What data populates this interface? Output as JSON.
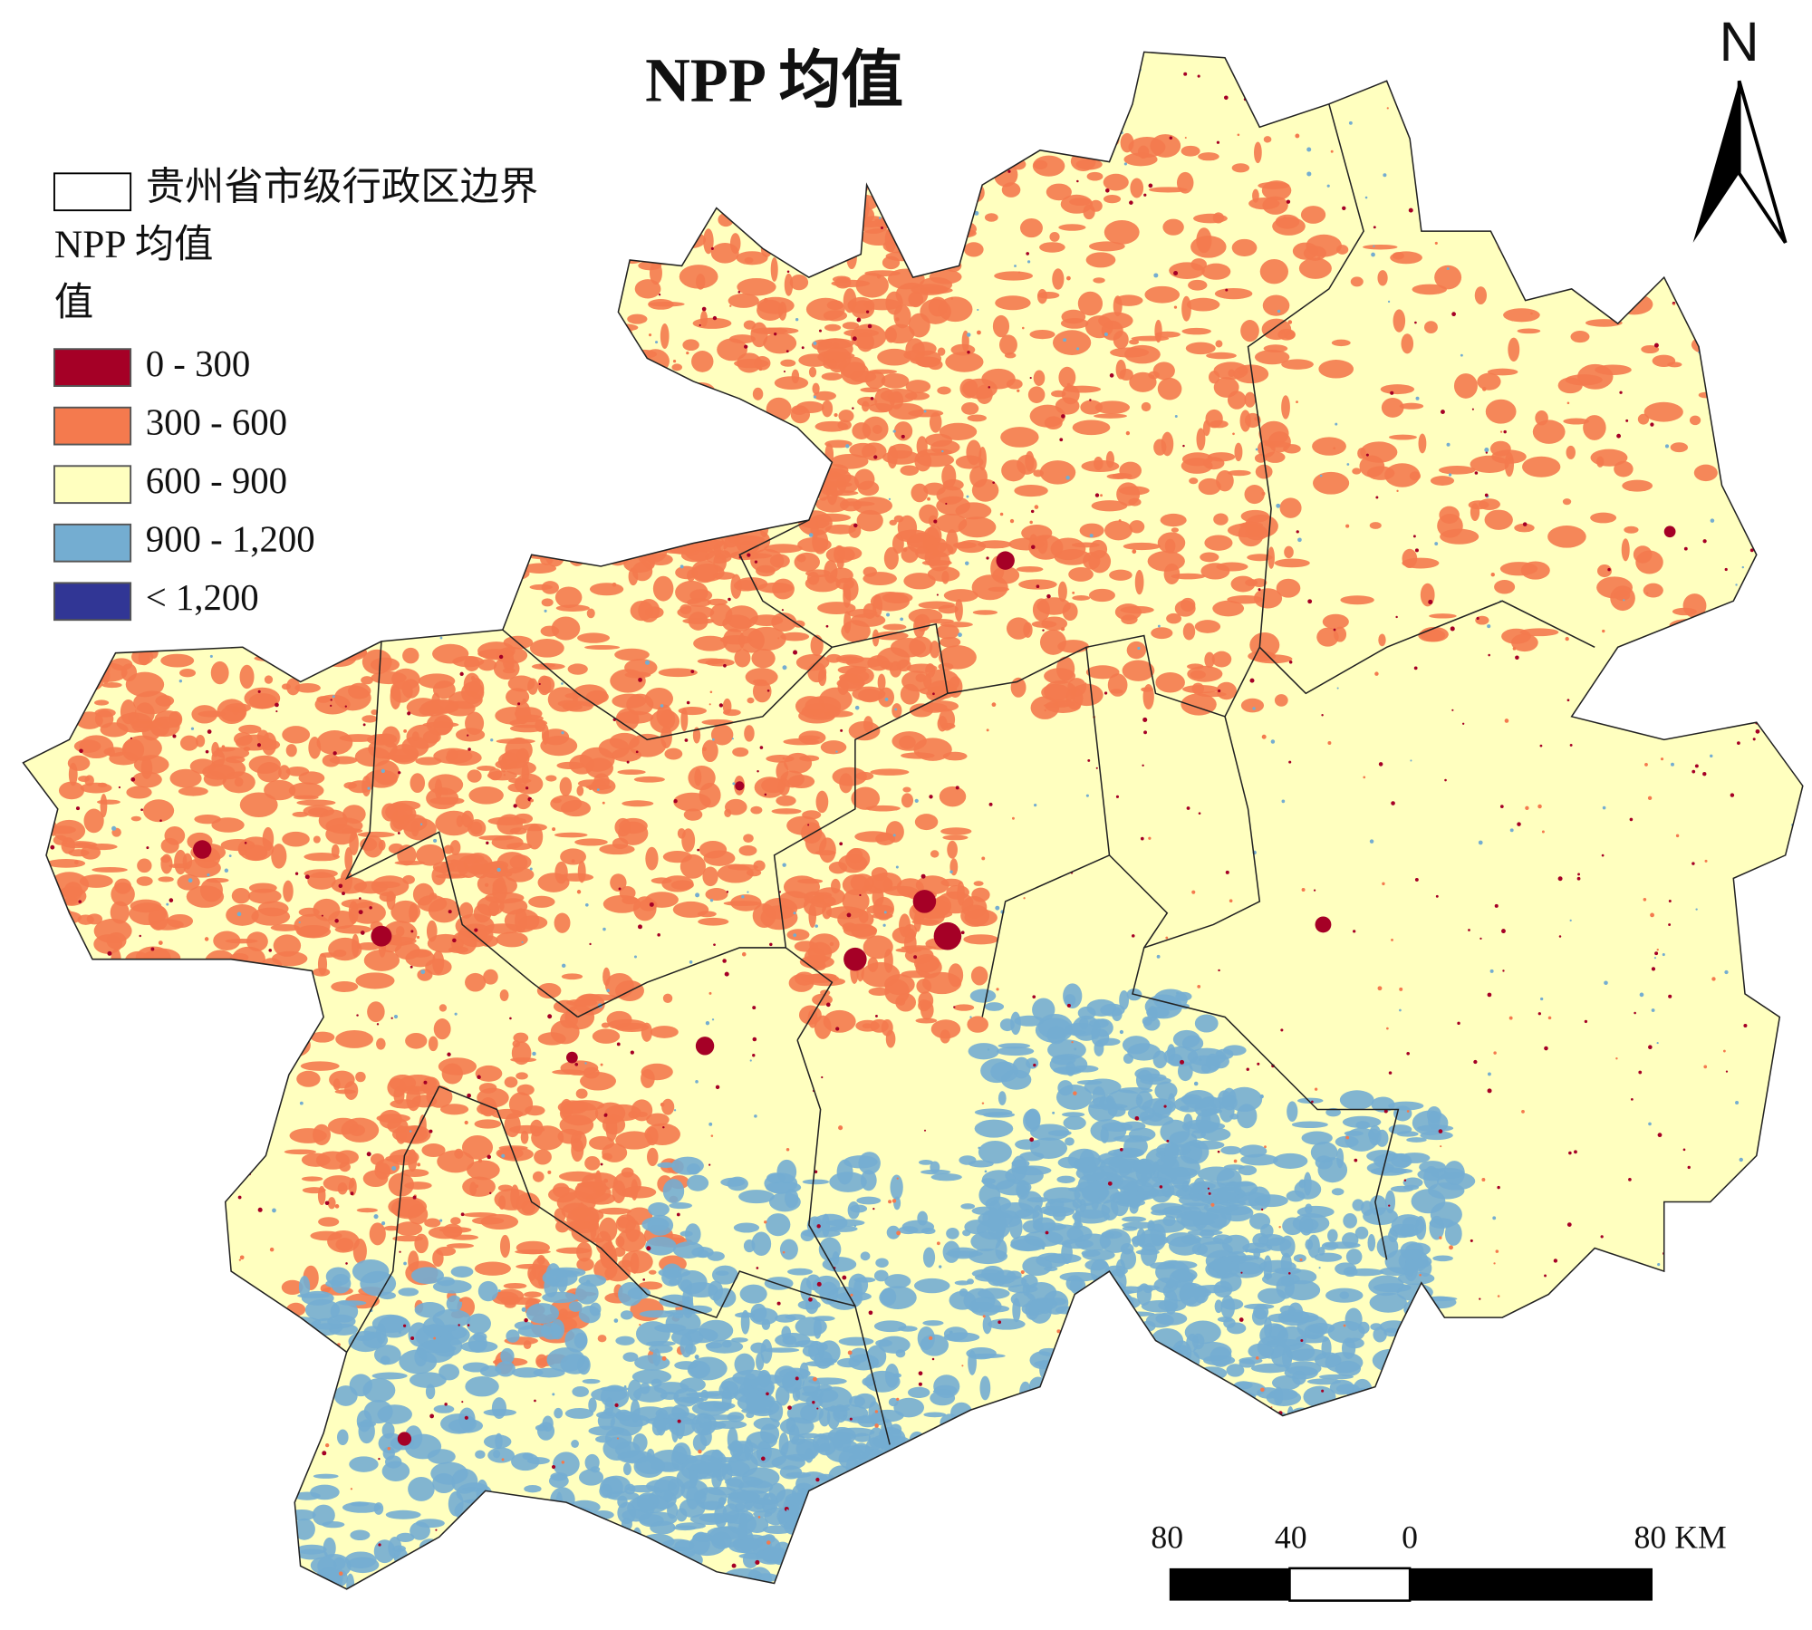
{
  "title": "NPP 均值",
  "legend": {
    "boundary": "贵州省市级行政区边界",
    "raster_title": "NPP 均值",
    "field": "值",
    "classes": [
      {
        "label": "0 - 300",
        "color": "#a50026"
      },
      {
        "label": "300 - 600",
        "color": "#f47a4e"
      },
      {
        "label": "600 - 900",
        "color": "#ffffbf"
      },
      {
        "label": "900 - 1,200",
        "color": "#74add1"
      },
      {
        "label": "< 1,200",
        "color": "#313695"
      }
    ]
  },
  "scale_bar": {
    "labels": [
      "80",
      "40",
      "0",
      "80 KM"
    ]
  },
  "north_arrow": "N"
}
